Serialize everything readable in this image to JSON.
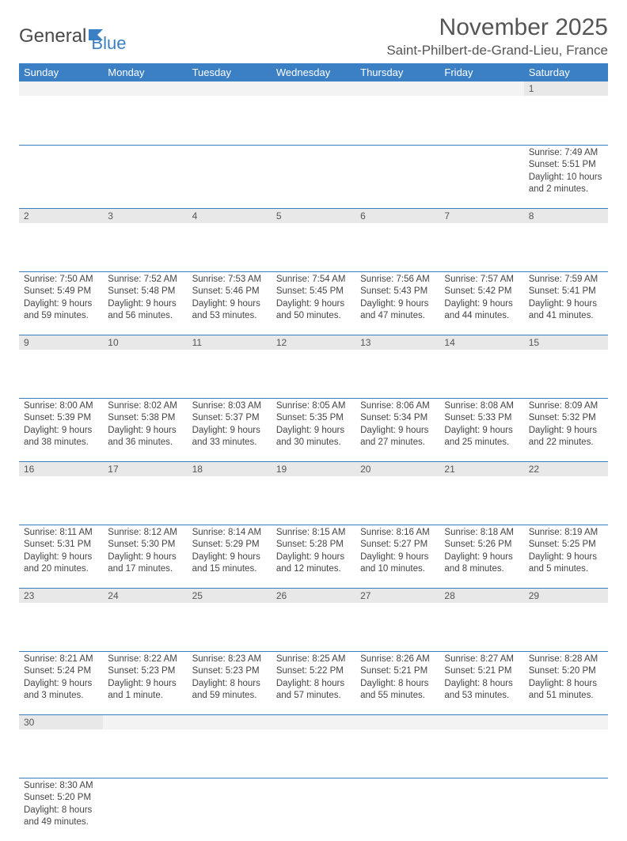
{
  "brand": {
    "part1": "General",
    "part2": "Blue"
  },
  "header": {
    "month_title": "November 2025",
    "location": "Saint-Philbert-de-Grand-Lieu, France"
  },
  "colors": {
    "header_bg": "#3b7fc4",
    "header_text": "#ffffff",
    "daynum_bg": "#e8e8e8",
    "border": "#3b7fc4",
    "text": "#444444"
  },
  "weekdays": [
    "Sunday",
    "Monday",
    "Tuesday",
    "Wednesday",
    "Thursday",
    "Friday",
    "Saturday"
  ],
  "weeks": [
    [
      null,
      null,
      null,
      null,
      null,
      null,
      {
        "n": "1",
        "sunrise": "Sunrise: 7:49 AM",
        "sunset": "Sunset: 5:51 PM",
        "daylight": "Daylight: 10 hours and 2 minutes."
      }
    ],
    [
      {
        "n": "2",
        "sunrise": "Sunrise: 7:50 AM",
        "sunset": "Sunset: 5:49 PM",
        "daylight": "Daylight: 9 hours and 59 minutes."
      },
      {
        "n": "3",
        "sunrise": "Sunrise: 7:52 AM",
        "sunset": "Sunset: 5:48 PM",
        "daylight": "Daylight: 9 hours and 56 minutes."
      },
      {
        "n": "4",
        "sunrise": "Sunrise: 7:53 AM",
        "sunset": "Sunset: 5:46 PM",
        "daylight": "Daylight: 9 hours and 53 minutes."
      },
      {
        "n": "5",
        "sunrise": "Sunrise: 7:54 AM",
        "sunset": "Sunset: 5:45 PM",
        "daylight": "Daylight: 9 hours and 50 minutes."
      },
      {
        "n": "6",
        "sunrise": "Sunrise: 7:56 AM",
        "sunset": "Sunset: 5:43 PM",
        "daylight": "Daylight: 9 hours and 47 minutes."
      },
      {
        "n": "7",
        "sunrise": "Sunrise: 7:57 AM",
        "sunset": "Sunset: 5:42 PM",
        "daylight": "Daylight: 9 hours and 44 minutes."
      },
      {
        "n": "8",
        "sunrise": "Sunrise: 7:59 AM",
        "sunset": "Sunset: 5:41 PM",
        "daylight": "Daylight: 9 hours and 41 minutes."
      }
    ],
    [
      {
        "n": "9",
        "sunrise": "Sunrise: 8:00 AM",
        "sunset": "Sunset: 5:39 PM",
        "daylight": "Daylight: 9 hours and 38 minutes."
      },
      {
        "n": "10",
        "sunrise": "Sunrise: 8:02 AM",
        "sunset": "Sunset: 5:38 PM",
        "daylight": "Daylight: 9 hours and 36 minutes."
      },
      {
        "n": "11",
        "sunrise": "Sunrise: 8:03 AM",
        "sunset": "Sunset: 5:37 PM",
        "daylight": "Daylight: 9 hours and 33 minutes."
      },
      {
        "n": "12",
        "sunrise": "Sunrise: 8:05 AM",
        "sunset": "Sunset: 5:35 PM",
        "daylight": "Daylight: 9 hours and 30 minutes."
      },
      {
        "n": "13",
        "sunrise": "Sunrise: 8:06 AM",
        "sunset": "Sunset: 5:34 PM",
        "daylight": "Daylight: 9 hours and 27 minutes."
      },
      {
        "n": "14",
        "sunrise": "Sunrise: 8:08 AM",
        "sunset": "Sunset: 5:33 PM",
        "daylight": "Daylight: 9 hours and 25 minutes."
      },
      {
        "n": "15",
        "sunrise": "Sunrise: 8:09 AM",
        "sunset": "Sunset: 5:32 PM",
        "daylight": "Daylight: 9 hours and 22 minutes."
      }
    ],
    [
      {
        "n": "16",
        "sunrise": "Sunrise: 8:11 AM",
        "sunset": "Sunset: 5:31 PM",
        "daylight": "Daylight: 9 hours and 20 minutes."
      },
      {
        "n": "17",
        "sunrise": "Sunrise: 8:12 AM",
        "sunset": "Sunset: 5:30 PM",
        "daylight": "Daylight: 9 hours and 17 minutes."
      },
      {
        "n": "18",
        "sunrise": "Sunrise: 8:14 AM",
        "sunset": "Sunset: 5:29 PM",
        "daylight": "Daylight: 9 hours and 15 minutes."
      },
      {
        "n": "19",
        "sunrise": "Sunrise: 8:15 AM",
        "sunset": "Sunset: 5:28 PM",
        "daylight": "Daylight: 9 hours and 12 minutes."
      },
      {
        "n": "20",
        "sunrise": "Sunrise: 8:16 AM",
        "sunset": "Sunset: 5:27 PM",
        "daylight": "Daylight: 9 hours and 10 minutes."
      },
      {
        "n": "21",
        "sunrise": "Sunrise: 8:18 AM",
        "sunset": "Sunset: 5:26 PM",
        "daylight": "Daylight: 9 hours and 8 minutes."
      },
      {
        "n": "22",
        "sunrise": "Sunrise: 8:19 AM",
        "sunset": "Sunset: 5:25 PM",
        "daylight": "Daylight: 9 hours and 5 minutes."
      }
    ],
    [
      {
        "n": "23",
        "sunrise": "Sunrise: 8:21 AM",
        "sunset": "Sunset: 5:24 PM",
        "daylight": "Daylight: 9 hours and 3 minutes."
      },
      {
        "n": "24",
        "sunrise": "Sunrise: 8:22 AM",
        "sunset": "Sunset: 5:23 PM",
        "daylight": "Daylight: 9 hours and 1 minute."
      },
      {
        "n": "25",
        "sunrise": "Sunrise: 8:23 AM",
        "sunset": "Sunset: 5:23 PM",
        "daylight": "Daylight: 8 hours and 59 minutes."
      },
      {
        "n": "26",
        "sunrise": "Sunrise: 8:25 AM",
        "sunset": "Sunset: 5:22 PM",
        "daylight": "Daylight: 8 hours and 57 minutes."
      },
      {
        "n": "27",
        "sunrise": "Sunrise: 8:26 AM",
        "sunset": "Sunset: 5:21 PM",
        "daylight": "Daylight: 8 hours and 55 minutes."
      },
      {
        "n": "28",
        "sunrise": "Sunrise: 8:27 AM",
        "sunset": "Sunset: 5:21 PM",
        "daylight": "Daylight: 8 hours and 53 minutes."
      },
      {
        "n": "29",
        "sunrise": "Sunrise: 8:28 AM",
        "sunset": "Sunset: 5:20 PM",
        "daylight": "Daylight: 8 hours and 51 minutes."
      }
    ],
    [
      {
        "n": "30",
        "sunrise": "Sunrise: 8:30 AM",
        "sunset": "Sunset: 5:20 PM",
        "daylight": "Daylight: 8 hours and 49 minutes."
      },
      null,
      null,
      null,
      null,
      null,
      null
    ]
  ]
}
